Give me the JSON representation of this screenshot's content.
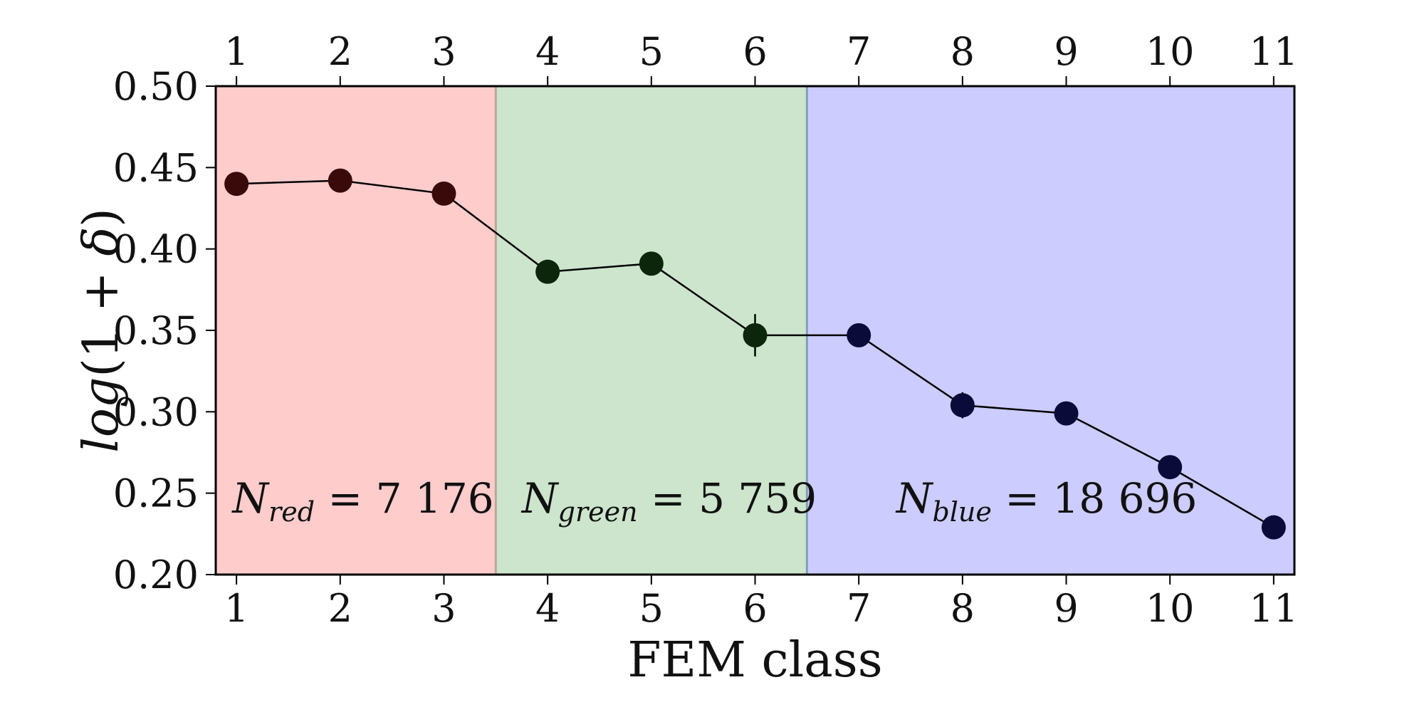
{
  "chart_data": {
    "type": "scatter",
    "xlabel": "FEM class",
    "ylabel": {
      "fn": "log",
      "open": "(1 + ",
      "sym": "δ",
      "close": ")"
    },
    "xlim": [
      0.8,
      11.2
    ],
    "ylim": [
      0.2,
      0.5
    ],
    "x_ticks": [
      "1",
      "2",
      "3",
      "4",
      "5",
      "6",
      "7",
      "8",
      "9",
      "10",
      "11"
    ],
    "y_ticks": [
      "0.20",
      "0.25",
      "0.30",
      "0.35",
      "0.40",
      "0.45",
      "0.50"
    ],
    "grid": false,
    "series": [
      {
        "x": [
          1,
          2,
          3,
          4,
          5,
          6,
          7,
          8,
          9,
          10,
          11
        ],
        "y": [
          0.44,
          0.442,
          0.434,
          0.386,
          0.391,
          0.347,
          0.347,
          0.304,
          0.299,
          0.266,
          0.229
        ],
        "yerr": [
          0.004,
          0.005,
          0.003,
          0.003,
          0.005,
          0.013,
          0.003,
          0.008,
          0.003,
          0.003,
          0.007
        ],
        "point_colors": [
          "#3a0a0a",
          "#3a0a0a",
          "#3a0a0a",
          "#0c260c",
          "#0c260c",
          "#0c260c",
          "#0b0b3a",
          "#0b0b3a",
          "#0b0b3a",
          "#0b0b3a",
          "#0b0b3a"
        ]
      }
    ],
    "regions": [
      {
        "x_from": 0.8,
        "x_to": 3.5,
        "color": "#ffcccc",
        "label": {
          "main": "N",
          "sub": "red",
          "eq": " = 7 176"
        }
      },
      {
        "x_from": 3.5,
        "x_to": 6.5,
        "color": "#cce5cc",
        "label": {
          "main": "N",
          "sub": "green",
          "eq": " = 5 759"
        }
      },
      {
        "x_from": 6.5,
        "x_to": 11.2,
        "color": "#ccccff",
        "label": {
          "main": "N",
          "sub": "blue",
          "eq": " = 18 696"
        }
      }
    ],
    "divider_colors": [
      "#b8a898",
      "#7f9fb8"
    ]
  }
}
